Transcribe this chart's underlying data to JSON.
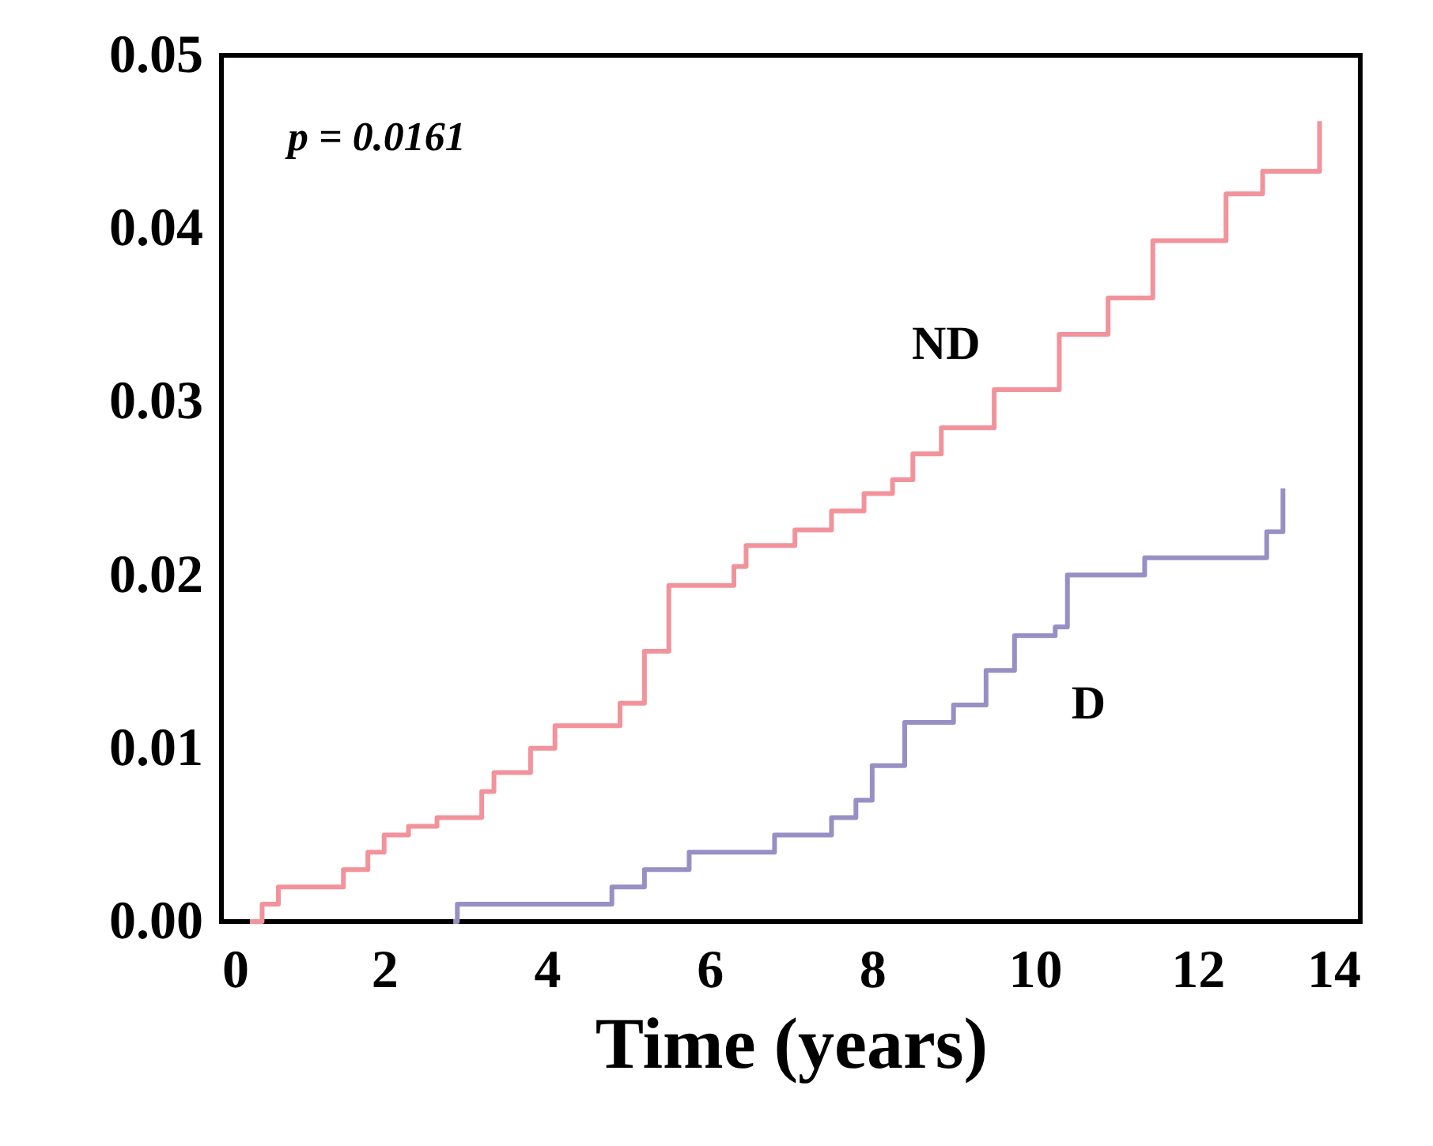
{
  "chart_data": {
    "type": "step",
    "xlabel": "Time (years)",
    "xlim": [
      0,
      14
    ],
    "xticks": [
      0,
      2,
      4,
      6,
      8,
      10,
      12,
      14
    ],
    "ylim": [
      0,
      0.05
    ],
    "yticks": [
      {
        "value": 0,
        "label": "0.00"
      },
      {
        "value": 0.01,
        "label": "0.01"
      },
      {
        "value": 0.02,
        "label": "0.02"
      },
      {
        "value": 0.03,
        "label": "0.03"
      },
      {
        "value": 0.04,
        "label": "0.04"
      },
      {
        "value": 0.05,
        "label": "0.05"
      }
    ],
    "grid": false,
    "marker": "none",
    "line_style": "solid",
    "annotations": [
      "p = 0.0161"
    ],
    "series": [
      {
        "name": "ND",
        "color": "#f2939b",
        "x": [
          0.35,
          0.5,
          0.7,
          1.5,
          1.8,
          2.0,
          2.3,
          2.65,
          3.2,
          3.35,
          3.8,
          4.1,
          4.9,
          5.2,
          5.5,
          6.3,
          6.45,
          7.05,
          7.5,
          7.9,
          8.25,
          8.5,
          8.85,
          9.5,
          10.3,
          10.9,
          11.45,
          12.35,
          12.8,
          13.5
        ],
        "values": [
          0,
          0.001,
          0.002,
          0.003,
          0.004,
          0.005,
          0.0055,
          0.006,
          0.0075,
          0.0086,
          0.01,
          0.0113,
          0.0126,
          0.0156,
          0.0194,
          0.0205,
          0.0217,
          0.0226,
          0.0237,
          0.0247,
          0.0255,
          0.027,
          0.0285,
          0.0307,
          0.0339,
          0.036,
          0.0393,
          0.042,
          0.0433,
          0.0462
        ]
      },
      {
        "name": "D",
        "color": "#9890c4",
        "x": [
          2.85,
          2.9,
          4.8,
          5.2,
          5.75,
          6.8,
          7.5,
          7.8,
          8.0,
          8.4,
          9.0,
          9.4,
          9.75,
          10.25,
          10.4,
          11.35,
          12.85,
          13.05
        ],
        "values": [
          0,
          0.001,
          0.002,
          0.003,
          0.004,
          0.005,
          0.006,
          0.007,
          0.009,
          0.0115,
          0.0125,
          0.0145,
          0.0165,
          0.017,
          0.02,
          0.021,
          0.0225,
          0.025
        ]
      }
    ]
  }
}
